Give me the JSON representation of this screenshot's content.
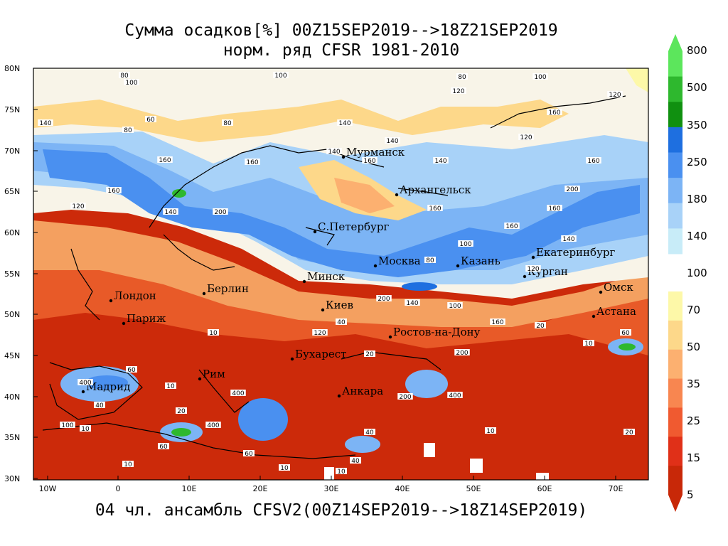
{
  "title_line1": "Сумма осадков[%] 00Z15SEP2019-->18Z21SEP2019",
  "title_line2": "норм. ряд CFSR 1981-2010",
  "subtitle": "04 чл. ансамбль CFSV2(00Z14SEP2019-->18Z14SEP2019)",
  "lat_ticks": [
    "80N",
    "75N",
    "70N",
    "65N",
    "60N",
    "55N",
    "50N",
    "45N",
    "40N",
    "35N",
    "30N"
  ],
  "lon_ticks": [
    "10W",
    "0",
    "10E",
    "20E",
    "30E",
    "40E",
    "50E",
    "60E",
    "70E"
  ],
  "colorbar": {
    "labels": [
      "800",
      "500",
      "350",
      "250",
      "180",
      "140",
      "100",
      "70",
      "50",
      "35",
      "25",
      "15",
      "5"
    ],
    "colors": [
      "#5ce65c",
      "#2eb82e",
      "#109010",
      "#1e6fe0",
      "#4a90f0",
      "#7cb4f5",
      "#a8d2f8",
      "#c8ecf8",
      "#fdf8a8",
      "#fdd88a",
      "#fcb070",
      "#f88650",
      "#f05a30",
      "#e03018",
      "#c82808"
    ]
  },
  "cities": [
    {
      "name": "Мурманск"
    },
    {
      "name": "Архангельск"
    },
    {
      "name": "С.Петербург"
    },
    {
      "name": "Москва"
    },
    {
      "name": "Казань"
    },
    {
      "name": "Екатеринбург"
    },
    {
      "name": "Курган"
    },
    {
      "name": "Омск"
    },
    {
      "name": "Астана"
    },
    {
      "name": "Минск"
    },
    {
      "name": "Берлин"
    },
    {
      "name": "Лондон"
    },
    {
      "name": "Париж"
    },
    {
      "name": "Киев"
    },
    {
      "name": "Ростов-на-Дону"
    },
    {
      "name": "Бухарест"
    },
    {
      "name": "Рим"
    },
    {
      "name": "Мадрид"
    },
    {
      "name": "Анкара"
    }
  ],
  "contour_labels": [
    "80",
    "100",
    "120",
    "140",
    "160",
    "200",
    "60",
    "40",
    "20",
    "10",
    "400"
  ]
}
